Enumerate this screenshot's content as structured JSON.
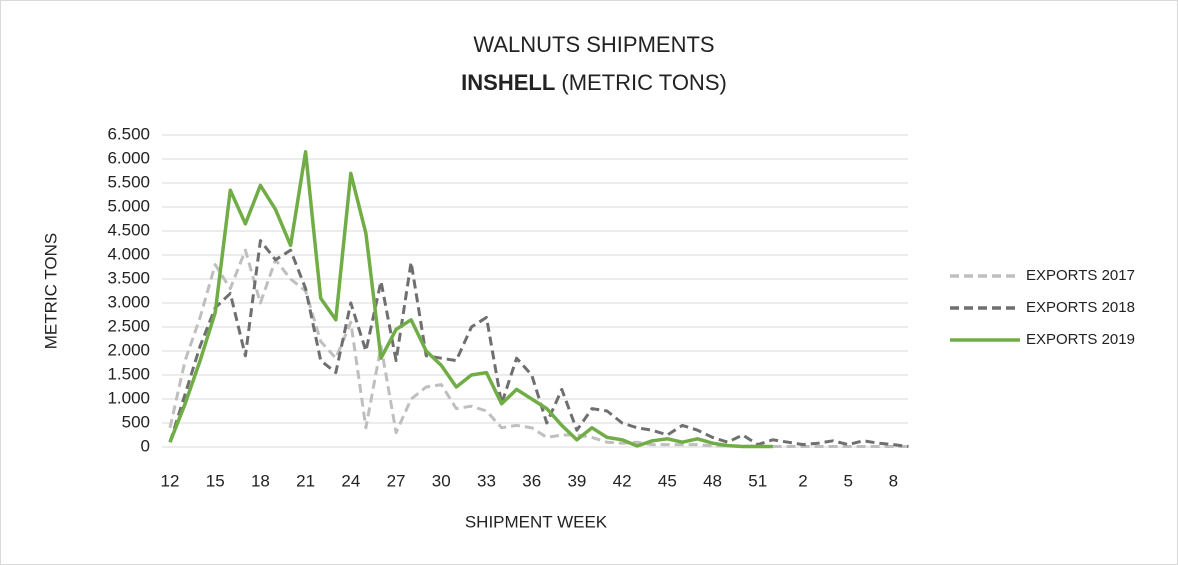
{
  "chart_data": {
    "type": "line",
    "title": "WALNUTS SHIPMENTS",
    "subtitle_bold": "INSHELL",
    "subtitle": "(METRIC TONS)",
    "x_label": "SHIPMENT WEEK",
    "y_label": "METRIC TONS",
    "categories": [
      "12",
      null,
      null,
      "15",
      null,
      null,
      "18",
      null,
      null,
      "21",
      null,
      null,
      "24",
      null,
      null,
      "27",
      null,
      null,
      "30",
      null,
      null,
      "33",
      null,
      null,
      "36",
      null,
      null,
      "39",
      null,
      null,
      "42",
      null,
      null,
      "45",
      null,
      null,
      "48",
      null,
      null,
      "51",
      null,
      null,
      "2",
      null,
      null,
      "5",
      null,
      null,
      "8",
      null
    ],
    "series": [
      {
        "name": "EXPORTS 2017",
        "color": "#bfbfbf",
        "dashed": true,
        "values": [
          400,
          1800,
          2700,
          3800,
          3300,
          4100,
          3000,
          3900,
          3500,
          3250,
          2200,
          1850,
          2600,
          400,
          2100,
          300,
          1000,
          1250,
          1300,
          800,
          850,
          750,
          400,
          450,
          400,
          200,
          250,
          250,
          200,
          100,
          80,
          100,
          50,
          50,
          50,
          50,
          20,
          20,
          20,
          10,
          10,
          10,
          10,
          10,
          10,
          10,
          10,
          10,
          10,
          10
        ]
      },
      {
        "name": "EXPORTS 2018",
        "color": "#6f6f6f",
        "dashed": true,
        "values": [
          100,
          1100,
          2100,
          2900,
          3200,
          1900,
          4300,
          3900,
          4100,
          3300,
          1800,
          1550,
          3000,
          2000,
          3450,
          1800,
          3850,
          1900,
          1850,
          1800,
          2500,
          2700,
          900,
          1850,
          1500,
          500,
          1200,
          350,
          800,
          750,
          500,
          400,
          350,
          250,
          450,
          350,
          200,
          100,
          250,
          50,
          150,
          100,
          50,
          80,
          130,
          50,
          130,
          80,
          50,
          10
        ]
      },
      {
        "name": "EXPORTS 2019",
        "color": "#70ad47",
        "dashed": false,
        "values": [
          100,
          900,
          1800,
          2800,
          5350,
          4650,
          5450,
          4950,
          4200,
          6150,
          3100,
          2650,
          5700,
          4450,
          1850,
          2450,
          2650,
          2000,
          1700,
          1250,
          1500,
          1550,
          900,
          1200,
          1000,
          800,
          450,
          150,
          400,
          200,
          150,
          20,
          130,
          170,
          100,
          170,
          80,
          30,
          10,
          10,
          10,
          null,
          null,
          null,
          null,
          null,
          null,
          null,
          null,
          null
        ]
      }
    ],
    "ylim": [
      0,
      6500
    ],
    "yticks": [
      0,
      500,
      {
        "value": 1000,
        "label": "1.000"
      },
      {
        "value": 1500,
        "label": "1.500"
      },
      {
        "value": 2000,
        "label": "2.000"
      },
      {
        "value": 2500,
        "label": "2.500"
      },
      {
        "value": 3000,
        "label": "3.000"
      },
      {
        "value": 3500,
        "label": "3.500"
      },
      {
        "value": 4000,
        "label": "4.000"
      },
      {
        "value": 4500,
        "label": "4.500"
      },
      {
        "value": 5000,
        "label": "5.000"
      },
      {
        "value": 5500,
        "label": "5.500"
      },
      {
        "value": 6000,
        "label": "6.000"
      },
      {
        "value": 6500,
        "label": "6.500"
      }
    ],
    "grid": true,
    "legend": "right"
  }
}
